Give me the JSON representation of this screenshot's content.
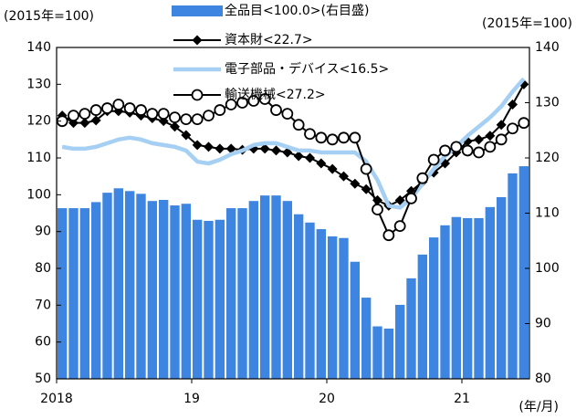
{
  "chart_data": {
    "type": "bar",
    "y_label": "(2015年=100)",
    "y2_label": "(2015年=100)",
    "x_label": "(年/月)",
    "categories": [
      "2018",
      null,
      null,
      null,
      null,
      null,
      null,
      null,
      null,
      null,
      null,
      null,
      "19",
      null,
      null,
      null,
      null,
      null,
      null,
      null,
      null,
      null,
      null,
      null,
      "20",
      null,
      null,
      null,
      null,
      null,
      null,
      null,
      null,
      null,
      null,
      null,
      "21",
      null,
      null,
      null,
      null,
      null
    ],
    "series": [
      {
        "name": "全品目<100.0>(右目盛)",
        "type": "bar",
        "axis": "y2",
        "color": "#3d85e0",
        "values": [
          110.9,
          110.9,
          110.9,
          112.0,
          113.7,
          114.5,
          114.0,
          113.5,
          112.2,
          112.4,
          111.4,
          111.7,
          108.8,
          108.6,
          108.8,
          110.9,
          110.9,
          112.2,
          113.2,
          113.2,
          112.2,
          109.8,
          108.3,
          107.1,
          105.8,
          105.5,
          101.2,
          94.7,
          89.5,
          89.1,
          93.4,
          98.2,
          102.5,
          105.6,
          107.8,
          109.3,
          109.1,
          109.1,
          111.1,
          112.9,
          117.2,
          118.5
        ]
      },
      {
        "name": "資本財<22.7>",
        "type": "line",
        "axis": "y",
        "color": "#000000",
        "marker": "diamond",
        "values": [
          121.5,
          119.5,
          119.5,
          120.2,
          122.7,
          122.7,
          122.3,
          121.5,
          120.8,
          120,
          118.5,
          116.2,
          113.5,
          113,
          112.5,
          112.5,
          112.2,
          112.5,
          112.5,
          112,
          111.5,
          110.5,
          110,
          108.5,
          107,
          105,
          103,
          101.5,
          98.5,
          97,
          98.5,
          101,
          103.5,
          106,
          108.5,
          111.5,
          114.5,
          115,
          116,
          119,
          124.5,
          130
        ]
      },
      {
        "name": "電子部品・デバイス<16.5>",
        "type": "line",
        "axis": "y",
        "color": "#a6cff4",
        "marker": "none",
        "values": [
          113,
          112.5,
          112.5,
          113,
          114,
          115,
          115.5,
          115,
          114,
          113.5,
          113,
          112,
          109,
          108.5,
          109.5,
          111,
          112,
          113.5,
          114,
          114,
          113,
          112,
          112,
          111.5,
          111.5,
          111.5,
          111.5,
          109,
          104,
          97,
          96.5,
          99,
          103,
          107,
          110.5,
          113,
          116,
          118.5,
          121,
          124,
          128,
          131.5
        ]
      },
      {
        "name": "輸送機械<27.2>",
        "type": "line",
        "axis": "y",
        "color": "#000000",
        "marker": "circle",
        "values": [
          120,
          121.5,
          122,
          123,
          123.5,
          124.5,
          123.5,
          123,
          122,
          122,
          121,
          120.5,
          120.5,
          121.5,
          123,
          124.5,
          125,
          125.5,
          126,
          123,
          122,
          119,
          116.5,
          115.5,
          115,
          115.5,
          115.5,
          107,
          96,
          89,
          91.5,
          99,
          104.5,
          109.5,
          112,
          113,
          112,
          111.5,
          113,
          115,
          118,
          119.5
        ]
      }
    ],
    "ylim": [
      50,
      140
    ],
    "yticks": [
      50,
      60,
      70,
      80,
      90,
      100,
      110,
      120,
      130,
      140
    ],
    "y2lim": [
      80,
      140
    ],
    "y2ticks": [
      80,
      90,
      100,
      110,
      120,
      130,
      140
    ]
  }
}
